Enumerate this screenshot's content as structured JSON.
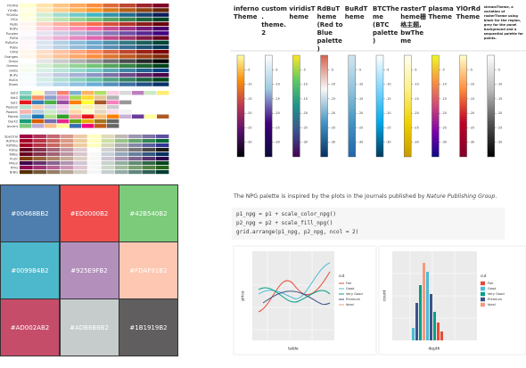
{
  "palettes": {
    "sequential": [
      {
        "name": "YlOrRd",
        "colors": [
          "#ffffcc",
          "#fd8d3c",
          "#800026"
        ]
      },
      {
        "name": "YlOrBr",
        "colors": [
          "#ffffe5",
          "#fe9929",
          "#662506"
        ]
      },
      {
        "name": "YlGnBu",
        "colors": [
          "#ffffd9",
          "#41b6c4",
          "#081d58"
        ]
      },
      {
        "name": "YlGn",
        "colors": [
          "#ffffe5",
          "#78c679",
          "#004529"
        ]
      },
      {
        "name": "Reds",
        "colors": [
          "#fff5f0",
          "#fb6a4a",
          "#67000d"
        ]
      },
      {
        "name": "RdPu",
        "colors": [
          "#fff7f3",
          "#f768a1",
          "#49006a"
        ]
      },
      {
        "name": "Purples",
        "colors": [
          "#fcfbfd",
          "#9e9ac8",
          "#3f007d"
        ]
      },
      {
        "name": "PuRd",
        "colors": [
          "#f7f4f9",
          "#df65b0",
          "#67001f"
        ]
      },
      {
        "name": "PuBuGn",
        "colors": [
          "#fff7fb",
          "#67a9cf",
          "#014636"
        ]
      },
      {
        "name": "PuBu",
        "colors": [
          "#fff7fb",
          "#74a9cf",
          "#023858"
        ]
      },
      {
        "name": "OrRd",
        "colors": [
          "#fff7ec",
          "#fc8d59",
          "#7f0000"
        ]
      },
      {
        "name": "Oranges",
        "colors": [
          "#fff5eb",
          "#fd8d3c",
          "#7f2704"
        ]
      },
      {
        "name": "Greys",
        "colors": [
          "#ffffff",
          "#969696",
          "#000000"
        ]
      },
      {
        "name": "Greens",
        "colors": [
          "#f7fcf5",
          "#74c476",
          "#00441b"
        ]
      },
      {
        "name": "GnBu",
        "colors": [
          "#f7fcf0",
          "#7bccc4",
          "#084081"
        ]
      },
      {
        "name": "BuPu",
        "colors": [
          "#f7fcfd",
          "#8c96c6",
          "#4d004b"
        ]
      },
      {
        "name": "BuGn",
        "colors": [
          "#f7fcfd",
          "#66c2a4",
          "#00441b"
        ]
      },
      {
        "name": "Blues",
        "colors": [
          "#f7fbff",
          "#6baed6",
          "#08306b"
        ]
      }
    ],
    "qualitative": [
      {
        "name": "Set3",
        "colors": [
          "#8dd3c7",
          "#ffffb3",
          "#bebada",
          "#fb8072",
          "#80b1d3",
          "#fdb462",
          "#b3de69",
          "#fccde5",
          "#d9d9d9",
          "#bc80bd",
          "#ccebc5",
          "#ffed6f"
        ]
      },
      {
        "name": "Set2",
        "colors": [
          "#66c2a5",
          "#fc8d62",
          "#8da0cb",
          "#e78ac3",
          "#a6d854",
          "#ffd92f",
          "#e5c494",
          "#b3b3b3"
        ]
      },
      {
        "name": "Set1",
        "colors": [
          "#e41a1c",
          "#377eb8",
          "#4daf4a",
          "#984ea3",
          "#ff7f00",
          "#ffff33",
          "#a65628",
          "#f781bf",
          "#999999"
        ]
      },
      {
        "name": "Pastel2",
        "colors": [
          "#b3e2cd",
          "#fdcdac",
          "#cbd5e8",
          "#f4cae4",
          "#e6f5c9",
          "#fff2ae",
          "#f1e2cc",
          "#cccccc"
        ]
      },
      {
        "name": "Pastel1",
        "colors": [
          "#fbb4ae",
          "#b3cde3",
          "#ccebc5",
          "#decbe4",
          "#fed9a6",
          "#ffffcc",
          "#e5d8bd",
          "#fddaec",
          "#f2f2f2"
        ]
      },
      {
        "name": "Paired",
        "colors": [
          "#a6cee3",
          "#1f78b4",
          "#b2df8a",
          "#33a02c",
          "#fb9a99",
          "#e31a1c",
          "#fdbf6f",
          "#ff7f00",
          "#cab2d6",
          "#6a3d9a",
          "#ffff99",
          "#b15928"
        ]
      },
      {
        "name": "Dark2",
        "colors": [
          "#1b9e77",
          "#d95f02",
          "#7570b3",
          "#e7298a",
          "#66a61e",
          "#e6ab02",
          "#a6761d",
          "#666666"
        ]
      },
      {
        "name": "Accent",
        "colors": [
          "#7fc97f",
          "#beaed4",
          "#fdc086",
          "#ffff99",
          "#386cb0",
          "#f0027f",
          "#bf5b17",
          "#666666"
        ]
      }
    ],
    "diverging": [
      {
        "name": "Spectral",
        "colors": [
          "#9e0142",
          "#ffffbf",
          "#5e4fa2"
        ]
      },
      {
        "name": "RdYlGn",
        "colors": [
          "#a50026",
          "#ffffbf",
          "#006837"
        ]
      },
      {
        "name": "RdYlBu",
        "colors": [
          "#a50026",
          "#ffffbf",
          "#313695"
        ]
      },
      {
        "name": "RdGy",
        "colors": [
          "#67001f",
          "#ffffff",
          "#1a1a1a"
        ]
      },
      {
        "name": "RdBu",
        "colors": [
          "#67001f",
          "#f7f7f7",
          "#053061"
        ]
      },
      {
        "name": "PuOr",
        "colors": [
          "#7f3b08",
          "#f7f7f7",
          "#2d004b"
        ]
      },
      {
        "name": "PRGn",
        "colors": [
          "#40004b",
          "#f7f7f7",
          "#00441b"
        ]
      },
      {
        "name": "PiYG",
        "colors": [
          "#8e0152",
          "#f7f7f7",
          "#276419"
        ]
      },
      {
        "name": "BrBG",
        "colors": [
          "#543005",
          "#f5f5f5",
          "#003c30"
        ]
      }
    ]
  },
  "swatches": [
    "#00468BB2",
    "#ED0000B2",
    "#42B540B2",
    "#0099B4B2",
    "#925E9FB2",
    "#FDAF91B2",
    "#AD002AB2",
    "#ADB6B6B2",
    "#1B1919B2"
  ],
  "themes": {
    "columns": [
      {
        "name": "inferno Theme",
        "colors": [
          "#fcffa4",
          "#f98e09",
          "#bc3754",
          "#57106e",
          "#000004"
        ]
      },
      {
        "name": "custom. theme.2",
        "colors": [
          "#ffffff",
          "#9ecae1",
          "#3f007d",
          "#0b0b3b"
        ]
      },
      {
        "name": "viridisTheme",
        "colors": [
          "#fde725",
          "#5ec962",
          "#21918c",
          "#3b528b",
          "#440154"
        ]
      },
      {
        "name": "RdBuTheme (Red to Blue palette)",
        "colors": [
          "#d6604d",
          "#f7f7f7",
          "#4393c3",
          "#053061"
        ]
      },
      {
        "name": "BuRdTheme",
        "colors": [
          "#d1e5f0",
          "#92c5de",
          "#4393c3",
          "#2166ac"
        ]
      },
      {
        "name": "BTCTheme (BTC palette)",
        "colors": [
          "#ffffff",
          "#7fd7ff",
          "#00a8e8",
          "#003a5c"
        ]
      },
      {
        "name": "rasterTheme栅格主题, bwTheme",
        "colors": [
          "#fffff0",
          "#fdf08a",
          "#f0d000",
          "#c89a00"
        ]
      },
      {
        "name": "plasmaTheme",
        "colors": [
          "#f0f921",
          "#f89540",
          "#cc4778",
          "#7e03a8",
          "#0d0887"
        ]
      },
      {
        "name": "YlOrRdTheme",
        "colors": [
          "#ffffcc",
          "#fd8d3c",
          "#bd0026",
          "#800026"
        ]
      },
      {
        "name": "streamTheme, a variation of rasterTheme using black for the region, grey for the panel background and a sequential palette for points.",
        "colors": [
          "#ffffff",
          "#bdbdbd",
          "#525252",
          "#000000"
        ]
      }
    ],
    "ylim": [
      0,
      -35
    ],
    "yticks": [
      -5,
      -10,
      -15,
      -20,
      -25,
      -30
    ]
  },
  "description": {
    "before": "The NPG palette is inspired by the plots in the journals published by ",
    "emphasis": "Nature Publishing Group",
    "after": "."
  },
  "code": [
    "p1_npg = p1 + scale_color_npg()",
    "p2_npg = p2 + scale_fill_npg()",
    "grid.arrange(p1_npg, p2_npg, ncol = 2)"
  ],
  "plots": {
    "scatter": {
      "x_label": "table",
      "y_label": "price"
    },
    "histogram": {
      "x_label": "depth",
      "y_label": "count"
    },
    "legend_title": "cut",
    "legend": [
      {
        "name": "Fair",
        "color": "#E64B35"
      },
      {
        "name": "Good",
        "color": "#4DBBD5"
      },
      {
        "name": "Very Good",
        "color": "#00A087"
      },
      {
        "name": "Premium",
        "color": "#3C5488"
      },
      {
        "name": "Ideal",
        "color": "#F39B7F"
      }
    ]
  }
}
